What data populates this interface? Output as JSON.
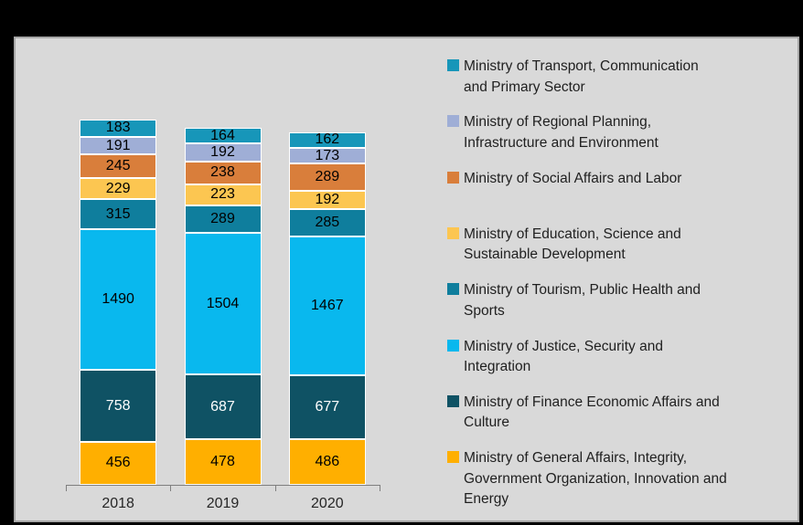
{
  "frame": {
    "background": "#000000",
    "plot_background": "#D9D9D9",
    "plot_border": "#A6A6A6",
    "axis_color": "#7F7F7F"
  },
  "chart_data": {
    "type": "bar",
    "stacked": true,
    "title": "",
    "xlabel": "",
    "ylabel": "",
    "grid": false,
    "legend_position": "right",
    "categories": [
      "2018",
      "2019",
      "2020"
    ],
    "series": [
      {
        "name": "Ministry of Transport, Communication and Primary Sector",
        "legend_lines": [
          "Ministry of Transport, Communication",
          "and Primary Sector"
        ],
        "color": "#1796B9",
        "value_color": "#000000",
        "values": [
          183,
          164,
          162
        ]
      },
      {
        "name": "Ministry of Regional Planning, Infrastructure and Environment",
        "legend_lines": [
          "Ministry of Regional Planning,",
          "Infrastructure and Environment"
        ],
        "color": "#9FAED6",
        "value_color": "#000000",
        "values": [
          191,
          192,
          173
        ]
      },
      {
        "name": "Ministry of Social Affairs and Labor",
        "legend_lines": [
          "Ministry of Social Affairs and Labor"
        ],
        "color": "#D97E3B",
        "value_color": "#000000",
        "values": [
          245,
          238,
          289
        ]
      },
      {
        "name": "Ministry of Education, Science and Sustainable Development",
        "legend_lines": [
          "Ministry of Education, Science and",
          "Sustainable Development"
        ],
        "color": "#FCC651",
        "value_color": "#000000",
        "values": [
          229,
          223,
          192
        ]
      },
      {
        "name": "Ministry of Tourism, Public Health and Sports",
        "legend_lines": [
          "Ministry of Tourism, Public Health and",
          "Sports"
        ],
        "color": "#0F7E9D",
        "value_color": "#000000",
        "values": [
          315,
          289,
          285
        ]
      },
      {
        "name": "Ministry of Justice, Security and Integration",
        "legend_lines": [
          "Ministry of Justice, Security and",
          "Integration"
        ],
        "color": "#09B8EE",
        "value_color": "#000000",
        "values": [
          1490,
          1504,
          1467
        ]
      },
      {
        "name": "Ministry of Finance Economic Affairs and Culture",
        "legend_lines": [
          "Ministry of Finance Economic Affairs and",
          "Culture"
        ],
        "color": "#0F5264",
        "value_color": "#FFFFFF",
        "values": [
          758,
          687,
          677
        ]
      },
      {
        "name": "Ministry of General Affairs, Integrity, Government Organization, Innovation and Energy",
        "legend_lines": [
          "Ministry of General Affairs, Integrity,",
          "Government Organization, Innovation and",
          "Energy"
        ],
        "color": "#FFAF00",
        "value_color": "#000000",
        "values": [
          456,
          478,
          486
        ]
      }
    ]
  }
}
